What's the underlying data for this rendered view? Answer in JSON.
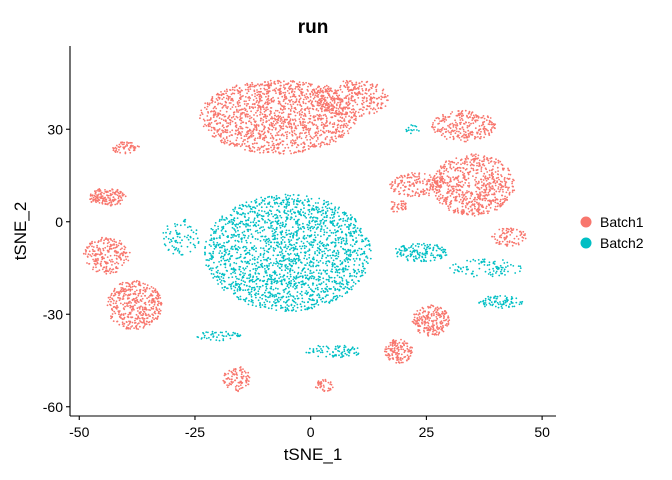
{
  "chart_data": {
    "type": "scatter",
    "title": "run",
    "xlabel": "tSNE_1",
    "ylabel": "tSNE_2",
    "xlim": [
      -52,
      53
    ],
    "ylim": [
      -63,
      57
    ],
    "xticks": [
      -50,
      -25,
      0,
      25,
      50
    ],
    "yticks": [
      -60,
      -30,
      0,
      30
    ],
    "xtick_labels": [
      "-50",
      "-25",
      "0",
      "25",
      "50"
    ],
    "ytick_labels": [
      "-60",
      "-30",
      "0",
      "30"
    ],
    "grid": false,
    "legend_position": "right",
    "series": [
      {
        "name": "Batch1",
        "color": "#F8766D",
        "clusters": [
          {
            "cx": -7,
            "cy": 34,
            "rx": 17,
            "ry": 12,
            "n": 1500
          },
          {
            "cx": 9,
            "cy": 40,
            "rx": 8,
            "ry": 6,
            "n": 300
          },
          {
            "cx": 33,
            "cy": 31,
            "rx": 7,
            "ry": 5,
            "n": 250
          },
          {
            "cx": 35,
            "cy": 12,
            "rx": 9,
            "ry": 10,
            "n": 700
          },
          {
            "cx": 23,
            "cy": 12,
            "rx": 6,
            "ry": 4,
            "n": 160
          },
          {
            "cx": 43,
            "cy": -5,
            "rx": 4,
            "ry": 3,
            "n": 80
          },
          {
            "cx": 19,
            "cy": 5,
            "rx": 2,
            "ry": 2,
            "n": 40
          },
          {
            "cx": -44,
            "cy": -11,
            "rx": 5,
            "ry": 6,
            "n": 220
          },
          {
            "cx": -38,
            "cy": -27,
            "rx": 6,
            "ry": 8,
            "n": 420
          },
          {
            "cx": -44,
            "cy": 8,
            "rx": 4,
            "ry": 3,
            "n": 150
          },
          {
            "cx": -40,
            "cy": 24,
            "rx": 3,
            "ry": 2,
            "n": 60
          },
          {
            "cx": 26,
            "cy": -32,
            "rx": 4,
            "ry": 5,
            "n": 220
          },
          {
            "cx": 19,
            "cy": -42,
            "rx": 3,
            "ry": 4,
            "n": 140
          },
          {
            "cx": -16,
            "cy": -51,
            "rx": 3,
            "ry": 4,
            "n": 100
          },
          {
            "cx": 3,
            "cy": -53,
            "rx": 2,
            "ry": 2,
            "n": 40
          }
        ]
      },
      {
        "name": "Batch2",
        "color": "#00BFC4",
        "clusters": [
          {
            "cx": -5,
            "cy": -10,
            "rx": 18,
            "ry": 19,
            "n": 2000
          },
          {
            "cx": -28,
            "cy": -5,
            "rx": 4,
            "ry": 6,
            "n": 80
          },
          {
            "cx": 24,
            "cy": -10,
            "rx": 6,
            "ry": 3,
            "n": 140
          },
          {
            "cx": 38,
            "cy": -15,
            "rx": 8,
            "ry": 3,
            "n": 90
          },
          {
            "cx": 41,
            "cy": -26,
            "rx": 5,
            "ry": 2,
            "n": 80
          },
          {
            "cx": 5,
            "cy": -42,
            "rx": 6,
            "ry": 2,
            "n": 80
          },
          {
            "cx": -20,
            "cy": -37,
            "rx": 5,
            "ry": 1.5,
            "n": 50
          },
          {
            "cx": 22,
            "cy": 30,
            "rx": 1.5,
            "ry": 1.5,
            "n": 15
          }
        ]
      }
    ]
  }
}
